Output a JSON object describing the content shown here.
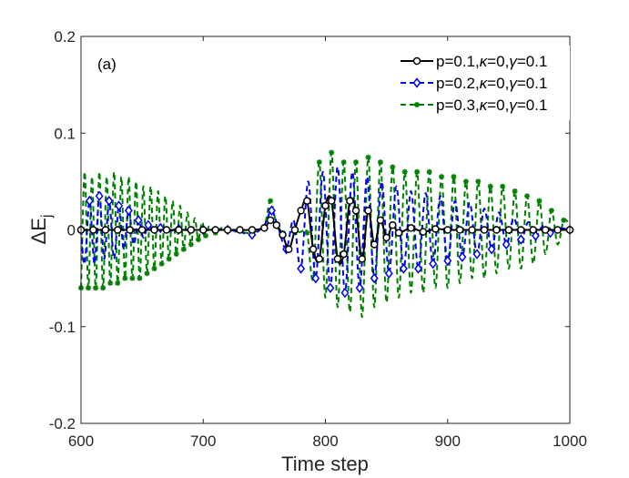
{
  "chart_data": {
    "type": "line",
    "title": "",
    "panel_label": "(a)",
    "xlabel": "Time step",
    "ylabel_main": "ΔE",
    "ylabel_sub": "j",
    "xlim": [
      600,
      1000
    ],
    "ylim": [
      -0.2,
      0.2
    ],
    "xticks": [
      600,
      700,
      800,
      900,
      1000
    ],
    "xtick_labels": [
      "600",
      "700",
      "800",
      "900",
      "1000"
    ],
    "yticks": [
      -0.2,
      -0.1,
      0,
      0.1,
      0.2
    ],
    "ytick_labels": [
      "-0.2",
      "-0.1",
      "0",
      "0.1",
      "0.2"
    ],
    "grid": false,
    "legend_position": "top-right",
    "series": [
      {
        "name": "p=0.1,κ=0,γ=0.1",
        "label_parts": [
          "p=0.1,",
          "κ",
          "=0,",
          "γ",
          "=0.1"
        ],
        "color": "#000000",
        "line_style": "solid",
        "marker": "circle",
        "x": [
          600,
          610,
          620,
          630,
          640,
          650,
          660,
          670,
          680,
          690,
          700,
          710,
          720,
          730,
          740,
          750,
          755,
          760,
          765,
          770,
          775,
          780,
          785,
          790,
          795,
          800,
          805,
          810,
          815,
          820,
          825,
          830,
          835,
          840,
          845,
          850,
          855,
          860,
          870,
          880,
          890,
          900,
          910,
          920,
          930,
          940,
          950,
          960,
          970,
          980,
          990,
          1000
        ],
        "values": [
          0,
          0,
          0,
          0,
          0,
          0,
          0,
          0,
          0,
          0,
          0,
          0,
          0,
          0,
          0,
          0.002,
          0.01,
          0.005,
          -0.005,
          -0.02,
          0.0,
          0.02,
          0.03,
          -0.02,
          -0.03,
          0.025,
          0.03,
          -0.03,
          -0.025,
          0.03,
          0.02,
          -0.03,
          0.02,
          -0.015,
          0.01,
          -0.008,
          0.005,
          -0.003,
          0.002,
          -0.002,
          0.001,
          0,
          0,
          0,
          0,
          0,
          0,
          0,
          0,
          0,
          0,
          0
        ]
      },
      {
        "name": "p=0.2,κ=0,γ=0.1",
        "label_parts": [
          "p=0.2,",
          "κ",
          "=0,",
          "γ",
          "=0.1"
        ],
        "color": "#0000ff",
        "line_style": "dashed",
        "marker": "diamond",
        "x": [
          600,
          603,
          607,
          611,
          615,
          619,
          623,
          627,
          631,
          635,
          639,
          643,
          647,
          651,
          655,
          660,
          665,
          670,
          680,
          690,
          700,
          710,
          720,
          730,
          740,
          750,
          756,
          762,
          768,
          774,
          780,
          786,
          792,
          798,
          804,
          810,
          816,
          822,
          828,
          834,
          840,
          846,
          852,
          858,
          864,
          870,
          876,
          882,
          888,
          894,
          900,
          906,
          912,
          918,
          924,
          930,
          936,
          942,
          948,
          954,
          960,
          966,
          972,
          978,
          984,
          990,
          1000
        ],
        "values": [
          0,
          -0.035,
          0.03,
          -0.035,
          0.035,
          -0.03,
          0.03,
          -0.03,
          0.025,
          -0.02,
          0.02,
          -0.015,
          0.01,
          -0.008,
          0.005,
          -0.003,
          0.002,
          -0.002,
          0.001,
          0,
          0,
          0,
          0,
          -0.002,
          -0.005,
          0.005,
          0.02,
          0,
          -0.02,
          0.01,
          -0.04,
          0.05,
          -0.05,
          0.06,
          -0.06,
          0.065,
          -0.065,
          0.06,
          -0.06,
          0.055,
          -0.05,
          0.05,
          -0.045,
          0.045,
          -0.04,
          0.04,
          -0.04,
          0.038,
          -0.035,
          0.035,
          -0.032,
          0.03,
          -0.028,
          0.028,
          -0.025,
          0.022,
          -0.02,
          0.018,
          -0.015,
          0.012,
          -0.01,
          0.008,
          -0.006,
          0.004,
          -0.003,
          0.002,
          0
        ]
      },
      {
        "name": "p=0.3,κ=0,γ=0.1",
        "label_parts": [
          "p=0.3,",
          "κ",
          "=0,",
          "γ",
          "=0.1"
        ],
        "color": "#008000",
        "line_style": "dashed",
        "marker": "star",
        "x": [
          600,
          603,
          606,
          609,
          612,
          615,
          618,
          621,
          624,
          627,
          630,
          633,
          636,
          639,
          642,
          645,
          648,
          651,
          654,
          657,
          660,
          663,
          666,
          669,
          672,
          675,
          678,
          681,
          684,
          687,
          690,
          693,
          696,
          699,
          702,
          705,
          710,
          715,
          720,
          730,
          740,
          750,
          755,
          760,
          765,
          770,
          775,
          780,
          785,
          790,
          795,
          800,
          805,
          810,
          815,
          820,
          825,
          830,
          835,
          840,
          845,
          850,
          855,
          860,
          865,
          870,
          875,
          880,
          885,
          890,
          895,
          900,
          905,
          910,
          915,
          920,
          925,
          930,
          935,
          940,
          945,
          950,
          955,
          960,
          965,
          970,
          975,
          980,
          985,
          990,
          995,
          1000
        ],
        "values": [
          -0.06,
          0.06,
          -0.06,
          0.055,
          -0.06,
          0.06,
          -0.06,
          0.055,
          -0.055,
          0.06,
          -0.055,
          0.055,
          -0.05,
          0.055,
          -0.05,
          0.05,
          -0.05,
          0.045,
          -0.045,
          0.045,
          -0.04,
          0.04,
          -0.035,
          0.035,
          -0.03,
          0.03,
          -0.025,
          0.025,
          -0.02,
          0.018,
          -0.015,
          0.012,
          -0.01,
          0.008,
          -0.006,
          0.004,
          -0.003,
          0.002,
          -0.001,
          -0.002,
          -0.003,
          0.005,
          0.03,
          0.005,
          -0.003,
          -0.002,
          -0.003,
          -0.002,
          -0.003,
          -0.05,
          0.07,
          -0.07,
          0.08,
          -0.08,
          0.07,
          -0.085,
          0.07,
          -0.09,
          0.075,
          -0.08,
          0.07,
          -0.075,
          0.065,
          -0.07,
          0.06,
          -0.065,
          0.06,
          -0.065,
          0.06,
          -0.06,
          0.055,
          -0.06,
          0.055,
          -0.055,
          0.05,
          -0.05,
          0.05,
          -0.05,
          0.045,
          -0.045,
          0.045,
          -0.04,
          0.04,
          -0.04,
          0.035,
          -0.035,
          0.03,
          -0.025,
          0.02,
          -0.015,
          0.01,
          0.005
        ]
      }
    ]
  }
}
